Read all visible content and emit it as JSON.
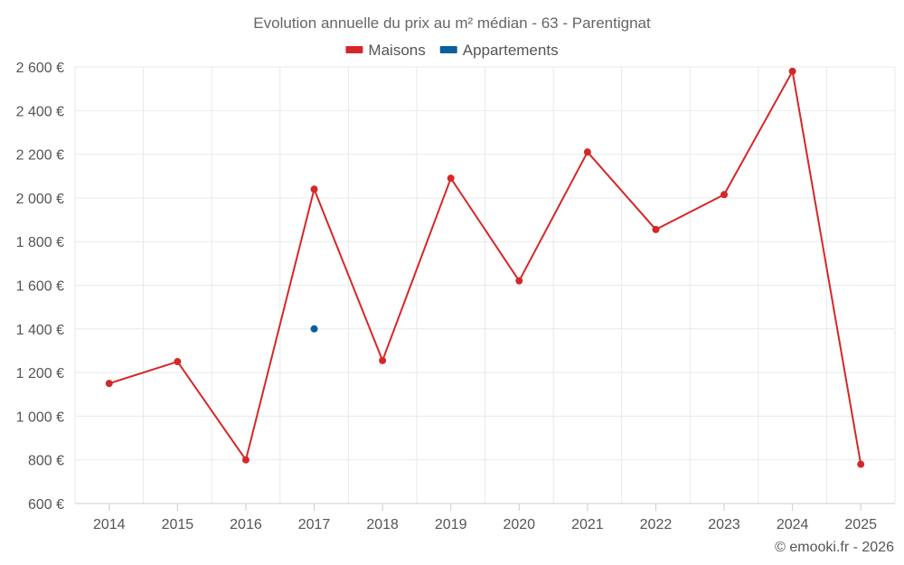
{
  "chart_data": {
    "type": "line",
    "title": "Evolution annuelle du prix au m² médian - 63 - Parentignat",
    "categories": [
      "2014",
      "2015",
      "2016",
      "2017",
      "2018",
      "2019",
      "2020",
      "2021",
      "2022",
      "2023",
      "2024",
      "2025"
    ],
    "y_ticks": [
      600,
      800,
      1000,
      1200,
      1400,
      1600,
      1800,
      2000,
      2200,
      2400,
      2600
    ],
    "y_tick_labels": [
      "600 €",
      "800 €",
      "1 000 €",
      "1 200 €",
      "1 400 €",
      "1 600 €",
      "1 800 €",
      "2 000 €",
      "2 200 €",
      "2 400 €",
      "2 600 €"
    ],
    "ylim": [
      600,
      2600
    ],
    "series": [
      {
        "name": "Maisons",
        "color": "#d62728",
        "values": [
          1150,
          1250,
          800,
          2040,
          1255,
          2090,
          1620,
          2210,
          1855,
          2015,
          2580,
          780
        ]
      },
      {
        "name": "Appartements",
        "color": "#0a5f9e",
        "values": [
          null,
          null,
          null,
          1400,
          null,
          null,
          null,
          null,
          null,
          null,
          null,
          null
        ]
      }
    ],
    "legend": "top-center",
    "grid": true,
    "credit": "© emooki.fr - 2026"
  }
}
